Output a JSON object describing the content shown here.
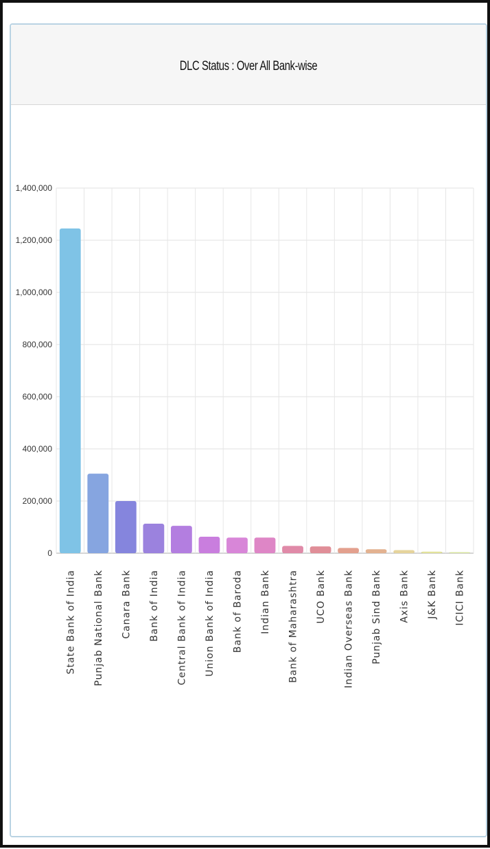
{
  "panel": {
    "title": "DLC Status : Over All Bank-wise"
  },
  "chart_data": {
    "type": "bar",
    "title": "DLC Status : Over All Bank-wise",
    "xlabel": "",
    "ylabel": "",
    "ylim": [
      0,
      1400000
    ],
    "yticks": [
      0,
      200000,
      400000,
      600000,
      800000,
      1000000,
      1200000,
      1400000
    ],
    "ytick_labels": [
      "0",
      "200,000",
      "400,000",
      "600,000",
      "800,000",
      "1,000,000",
      "1,200,000",
      "1,400,000"
    ],
    "grid": true,
    "legend": "none",
    "categories": [
      "State Bank of India",
      "Punjab National Bank",
      "Canara Bank",
      "Bank of India",
      "Central Bank of India",
      "Union Bank of India",
      "Bank of Baroda",
      "Indian Bank",
      "Bank of Maharashtra",
      "UCO Bank",
      "Indian Overseas Bank",
      "Punjab Sind Bank",
      "Axis Bank",
      "J&K Bank",
      "ICICI Bank"
    ],
    "values": [
      1245000,
      305000,
      200000,
      113000,
      105000,
      63000,
      60000,
      60000,
      28000,
      26000,
      20000,
      15000,
      12000,
      6000,
      4000
    ],
    "colors": [
      "#7fc3e6",
      "#86a5e0",
      "#8585dd",
      "#9b82de",
      "#b37ee0",
      "#c97ede",
      "#d886d8",
      "#de86c6",
      "#e08aa8",
      "#e08e98",
      "#e3a08e",
      "#e3b290",
      "#e6d49c",
      "#e2e29a",
      "#d9e6a0"
    ]
  }
}
